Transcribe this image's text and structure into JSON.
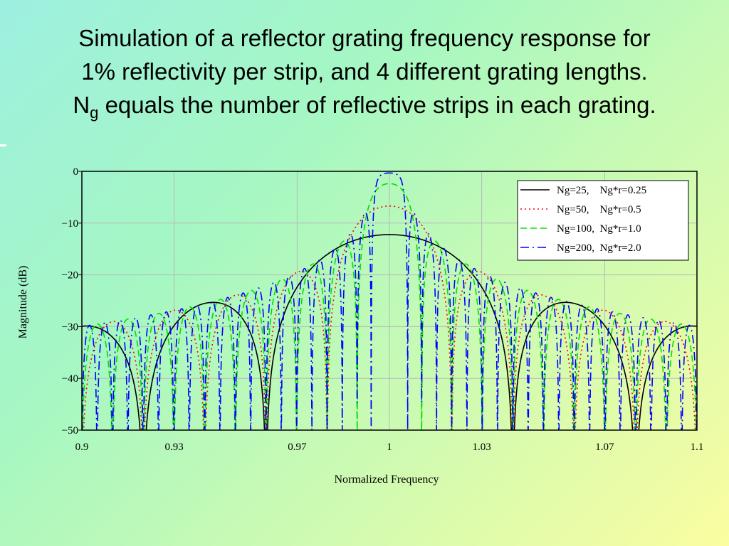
{
  "slide": {
    "title_line1": "Simulation of a reflector grating frequency response for",
    "title_line2": "1% reflectivity per strip, and 4 different grating lengths.",
    "title_line3_prefix": "N",
    "title_line3_sub": "g",
    "title_line3_rest": " equals the number of reflective strips in each grating."
  },
  "chart_data": {
    "type": "line",
    "title": "",
    "xlabel": "Normalized Frequency",
    "ylabel": "Magnitude (dB)",
    "xlim": [
      0.9,
      1.1
    ],
    "ylim": [
      -50,
      0
    ],
    "xticks": [
      0.9,
      0.93,
      0.97,
      1,
      1.03,
      1.07,
      1.1
    ],
    "xtick_labels": [
      "0.9",
      "0.93",
      "0.97",
      "1",
      "1.03",
      "1.07",
      "1.1"
    ],
    "yticks": [
      0,
      -10,
      -20,
      -30,
      -40,
      -50
    ],
    "ytick_labels": [
      "0",
      "−10",
      "−20",
      "−30",
      "−40",
      "−50"
    ],
    "grid": true,
    "legend_position": "top-right",
    "reflectivity_per_strip": 0.01,
    "series": [
      {
        "name": "Ng=25,    Ng*r=0.25",
        "Ng": 25,
        "color": "#000000",
        "dash": "solid"
      },
      {
        "name": "Ng=50,    Ng*r=0.5",
        "Ng": 50,
        "color": "#ff0000",
        "dash": "dotted"
      },
      {
        "name": "Ng=100,  Ng*r=1.0",
        "Ng": 100,
        "color": "#00e000",
        "dash": "dashed"
      },
      {
        "name": "Ng=200,  Ng*r=2.0",
        "Ng": 200,
        "color": "#0000ff",
        "dash": "dash-dot"
      }
    ]
  }
}
